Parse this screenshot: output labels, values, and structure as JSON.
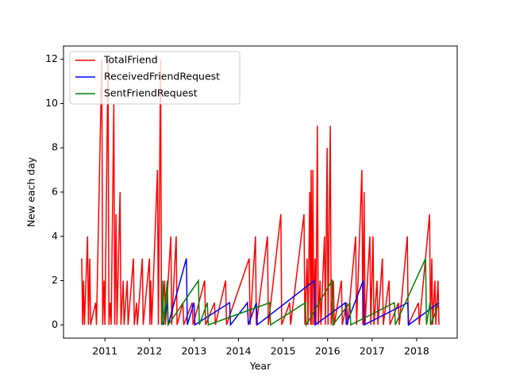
{
  "chart_data": {
    "type": "line",
    "xlabel": "Year",
    "ylabel": "New each day",
    "xlim": [
      2010.07,
      2018.91
    ],
    "xticks": [
      2011,
      2012,
      2013,
      2014,
      2015,
      2016,
      2017,
      2018
    ],
    "ylim": [
      -0.6,
      12.6
    ],
    "yticks": [
      0,
      2,
      4,
      6,
      8,
      10,
      12
    ],
    "legend": "upper left",
    "series": [
      {
        "name": "TotalFriend",
        "color": "#ff0000",
        "x": [
          2010.48,
          2010.5,
          2010.52,
          2010.54,
          2010.61,
          2010.63,
          2010.66,
          2010.68,
          2010.79,
          2010.81,
          2010.93,
          2010.95,
          2010.98,
          2011.0,
          2011.07,
          2011.09,
          2011.12,
          2011.14,
          2011.2,
          2011.22,
          2011.25,
          2011.27,
          2011.34,
          2011.36,
          2011.41,
          2011.43,
          2011.5,
          2011.52,
          2011.64,
          2011.66,
          2011.71,
          2011.73,
          2011.84,
          2011.86,
          2012.0,
          2012.01,
          2012.03,
          2012.05,
          2012.18,
          2012.2,
          2012.25,
          2012.27,
          2012.34,
          2012.36,
          2012.48,
          2012.5,
          2012.6,
          2012.62,
          2012.75,
          2012.77,
          2012.96,
          2012.98,
          2013.24,
          2013.26,
          2013.46,
          2013.48,
          2013.71,
          2013.73,
          2014.24,
          2014.26,
          2014.38,
          2014.4,
          2014.65,
          2014.67,
          2014.95,
          2014.97,
          2015.15,
          2015.17,
          2015.47,
          2015.49,
          2015.54,
          2015.56,
          2015.6,
          2015.62,
          2015.63,
          2015.65,
          2015.67,
          2015.69,
          2015.72,
          2015.74,
          2015.77,
          2015.79,
          2015.83,
          2015.85,
          2015.93,
          2015.95,
          2015.99,
          2016.01,
          2016.06,
          2016.08,
          2016.13,
          2016.15,
          2016.31,
          2016.33,
          2016.43,
          2016.45,
          2016.63,
          2016.65,
          2016.77,
          2016.79,
          2016.82,
          2016.84,
          2016.95,
          2016.97,
          2017.02,
          2017.04,
          2017.11,
          2017.13,
          2017.23,
          2017.25,
          2017.38,
          2017.4,
          2017.59,
          2017.61,
          2017.79,
          2017.81,
          2018.04,
          2018.06,
          2018.29,
          2018.31,
          2018.34,
          2018.36,
          2018.41,
          2018.43,
          2018.48,
          2018.5
        ],
        "values": [
          3,
          0,
          2,
          0,
          4,
          0,
          3,
          0,
          1,
          0,
          12,
          0,
          2,
          0,
          12,
          0,
          1,
          0,
          10,
          0,
          5,
          0,
          6,
          0,
          2,
          0,
          2,
          0,
          3,
          0,
          1,
          0,
          3,
          0,
          3,
          0,
          2,
          0,
          7,
          0,
          12,
          0,
          2,
          0,
          4,
          0,
          4,
          0,
          1,
          0,
          1,
          0,
          2,
          0,
          1,
          0,
          2,
          0,
          3,
          0,
          4,
          0,
          4,
          0,
          5,
          0,
          1,
          0,
          5,
          0,
          3,
          0,
          6,
          0,
          7,
          0,
          7,
          0,
          3,
          0,
          9,
          0,
          2,
          0,
          4,
          0,
          8,
          0,
          9,
          0,
          2,
          0,
          2,
          0,
          1,
          0,
          4,
          0,
          7,
          0,
          6,
          0,
          4,
          0,
          4,
          0,
          2,
          0,
          3,
          0,
          2,
          0,
          1,
          0,
          4,
          0,
          1,
          0,
          5,
          0,
          3,
          0,
          2,
          0,
          2,
          0
        ]
      },
      {
        "name": "ReceivedFriendRequest",
        "color": "#0000ff",
        "x": [
          2012.3,
          2012.4,
          2012.42,
          2012.83,
          2012.85,
          2013.0,
          2013.02,
          2013.8,
          2013.82,
          2014.2,
          2014.22,
          2014.4,
          2014.42,
          2015.7,
          2015.72,
          2016.4,
          2016.42,
          2016.8,
          2016.82,
          2017.8,
          2017.82,
          2018.5
        ],
        "values": [
          0,
          1,
          0,
          3,
          0,
          1,
          0,
          1,
          0,
          1,
          0,
          1,
          0,
          2,
          0,
          1,
          0,
          2,
          0,
          1,
          0,
          1
        ]
      },
      {
        "name": "SentFriendRequest",
        "color": "#008000",
        "x": [
          2012.28,
          2012.3,
          2012.32,
          2012.4,
          2012.42,
          2013.1,
          2013.12,
          2013.3,
          2013.32,
          2014.7,
          2014.72,
          2015.5,
          2015.52,
          2016.1,
          2016.12,
          2016.5,
          2016.52,
          2017.5,
          2017.52,
          2018.2,
          2018.22,
          2018.3,
          2018.32,
          2018.5
        ],
        "values": [
          0,
          2,
          0,
          2,
          0,
          2,
          0,
          1,
          0,
          1,
          0,
          1,
          0,
          2,
          0,
          1,
          0,
          1,
          0,
          3,
          0,
          1,
          0,
          1
        ]
      }
    ]
  }
}
